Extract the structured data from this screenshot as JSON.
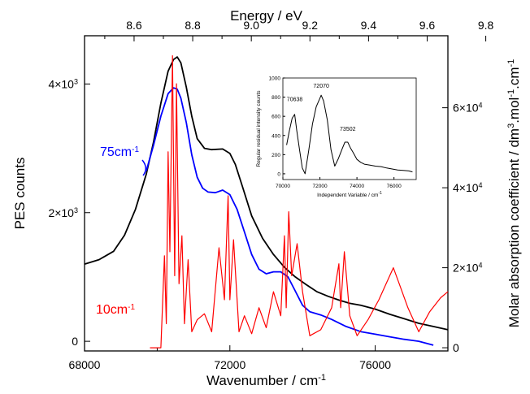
{
  "chart_data": [
    {
      "type": "line",
      "xlabel": "Wavenumber / cm",
      "xlabel_sup": "-1",
      "xlim": [
        68000,
        78000
      ],
      "x_ticks": [
        {
          "v": 68000,
          "label": "68000"
        },
        {
          "v": 72000,
          "label": "72000"
        },
        {
          "v": 76000,
          "label": "76000"
        }
      ],
      "top_axis": {
        "label": "Energy / eV",
        "ticks": [
          {
            "v": 8.6,
            "label": "8.6"
          },
          {
            "v": 8.8,
            "label": "8.8"
          },
          {
            "v": 9.0,
            "label": "9.0"
          },
          {
            "v": 9.2,
            "label": "9.2"
          },
          {
            "v": 9.4,
            "label": "9.4"
          },
          {
            "v": 9.6,
            "label": "9.6"
          },
          {
            "v": 9.8,
            "label": "9.8"
          }
        ]
      },
      "left_axis": {
        "label": "PES counts",
        "ylim": [
          -150,
          4750
        ],
        "ticks": [
          {
            "v": 0,
            "base": "0",
            "exp": ""
          },
          {
            "v": 2000,
            "base": "2×10",
            "exp": "3"
          },
          {
            "v": 4000,
            "base": "4×10",
            "exp": "3"
          }
        ]
      },
      "right_axis": {
        "label": "Molar absorption coefficient / dm",
        "label_parts": [
          "Molar absorption coefficient / dm",
          "3",
          ".mol",
          "-1",
          ".cm",
          "-1"
        ],
        "ylim": [
          -800,
          78000
        ],
        "ticks": [
          {
            "v": 0,
            "base": "0",
            "exp": ""
          },
          {
            "v": 20000,
            "base": "2×10",
            "exp": "4"
          },
          {
            "v": 40000,
            "base": "4×10",
            "exp": "4"
          },
          {
            "v": 60000,
            "base": "6×10",
            "exp": "4"
          }
        ]
      },
      "series": [
        {
          "axis": "left",
          "color": "#000000",
          "x": [
            68000,
            68400,
            68800,
            69100,
            69400,
            69700,
            69900,
            70100,
            70300,
            70450,
            70550,
            70650,
            70800,
            70950,
            71100,
            71300,
            71500,
            71800,
            72000,
            72150,
            72350,
            72600,
            72900,
            73200,
            73500,
            73800,
            74100,
            74400,
            74700,
            75000,
            75300,
            75600,
            76000,
            76400,
            76800,
            77200,
            77600,
            78000
          ],
          "values": [
            1200,
            1270,
            1400,
            1650,
            2050,
            2600,
            3100,
            3700,
            4200,
            4380,
            4420,
            4330,
            3950,
            3500,
            3150,
            3000,
            2980,
            2990,
            2920,
            2750,
            2400,
            1950,
            1600,
            1350,
            1150,
            1000,
            880,
            770,
            700,
            640,
            590,
            560,
            500,
            420,
            350,
            280,
            230,
            180
          ]
        },
        {
          "axis": "left",
          "color": "#0000ff",
          "label": "75cm",
          "label_sup": "-1",
          "x": [
            69700,
            69900,
            70100,
            70300,
            70450,
            70550,
            70650,
            70800,
            70950,
            71100,
            71250,
            71400,
            71600,
            71800,
            72000,
            72200,
            72400,
            72600,
            72800,
            73000,
            73200,
            73400,
            73600,
            73800,
            74000,
            74200,
            74500,
            74800,
            75200,
            75600,
            76000,
            76400,
            76800,
            77200,
            77600
          ],
          "values": [
            2650,
            3050,
            3500,
            3850,
            3940,
            3920,
            3780,
            3400,
            2900,
            2550,
            2380,
            2320,
            2310,
            2350,
            2280,
            2050,
            1700,
            1350,
            1120,
            1050,
            1080,
            1080,
            1000,
            780,
            560,
            460,
            410,
            340,
            230,
            150,
            110,
            70,
            30,
            0,
            -60
          ]
        },
        {
          "axis": "right",
          "color": "#ff0000",
          "label": "10cm",
          "label_sup": "-1",
          "x": [
            69800,
            70100,
            70200,
            70250,
            70300,
            70350,
            70420,
            70480,
            70530,
            70600,
            70680,
            70750,
            70850,
            70950,
            71100,
            71300,
            71500,
            71700,
            71850,
            71950,
            72000,
            72100,
            72250,
            72400,
            72600,
            72800,
            73000,
            73200,
            73400,
            73500,
            73550,
            73620,
            73700,
            73850,
            74000,
            74200,
            74500,
            74800,
            75000,
            75050,
            75150,
            75300,
            75500,
            75800,
            76100,
            76300,
            76500,
            76700,
            76900,
            77200,
            77500,
            77800,
            78000
          ],
          "values": [
            0,
            0,
            23000,
            6000,
            49000,
            24000,
            73000,
            18000,
            66000,
            16000,
            28000,
            6000,
            22000,
            4000,
            7000,
            8500,
            4000,
            25000,
            12000,
            38000,
            12000,
            27000,
            4000,
            8000,
            3500,
            10000,
            5000,
            14000,
            8000,
            28000,
            10000,
            34000,
            18000,
            26000,
            14000,
            3000,
            4500,
            10000,
            21000,
            10000,
            24000,
            8000,
            3000,
            7000,
            12000,
            16000,
            20000,
            15000,
            10000,
            4000,
            9000,
            12500,
            14000
          ]
        }
      ]
    },
    {
      "type": "line",
      "xlabel": "Independent Variable / cm",
      "xlabel_sup": "-1",
      "ylabel": "Regular residual intensity counts",
      "xlim": [
        70000,
        77200
      ],
      "ylim": [
        -60,
        1000
      ],
      "x_ticks": [
        {
          "v": 70000,
          "label": "70000"
        },
        {
          "v": 72000,
          "label": "72000"
        },
        {
          "v": 74000,
          "label": "74000"
        },
        {
          "v": 76000,
          "label": "76000"
        }
      ],
      "y_ticks": [
        {
          "v": 0,
          "label": "0"
        },
        {
          "v": 200,
          "label": "200"
        },
        {
          "v": 400,
          "label": "400"
        },
        {
          "v": 600,
          "label": "600"
        },
        {
          "v": 800,
          "label": "800"
        },
        {
          "v": 1000,
          "label": "1000"
        }
      ],
      "annotations": [
        {
          "x": 70638,
          "y": 760,
          "text": "70638"
        },
        {
          "x": 72070,
          "y": 900,
          "text": "72070"
        },
        {
          "x": 73502,
          "y": 450,
          "text": "73502"
        }
      ],
      "series": [
        {
          "color": "#000000",
          "x": [
            70200,
            70350,
            70500,
            70638,
            70750,
            70900,
            71050,
            71200,
            71400,
            71600,
            71800,
            72000,
            72070,
            72200,
            72400,
            72600,
            72800,
            73000,
            73200,
            73350,
            73502,
            73650,
            73800,
            74000,
            74200,
            74400,
            74700,
            75000,
            75300,
            75600,
            75900,
            76200,
            76500,
            76800,
            77000
          ],
          "values": [
            300,
            450,
            580,
            620,
            450,
            250,
            60,
            0,
            250,
            520,
            700,
            790,
            820,
            760,
            560,
            250,
            80,
            160,
            260,
            330,
            330,
            270,
            220,
            150,
            120,
            100,
            90,
            80,
            75,
            60,
            50,
            40,
            35,
            30,
            20
          ]
        }
      ]
    }
  ]
}
